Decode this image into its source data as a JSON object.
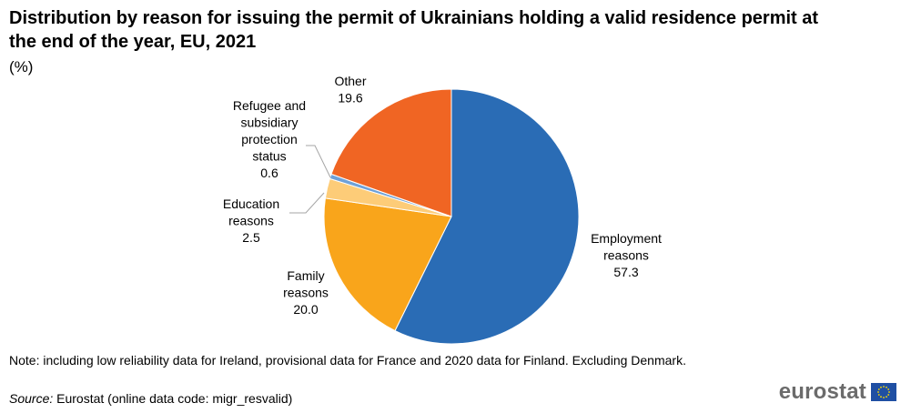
{
  "header": {
    "title": "Distribution by reason for issuing the permit of Ukrainians holding a valid residence permit at the end of the year, EU, 2021",
    "unit": "(%)"
  },
  "chart_data": {
    "type": "pie",
    "start_angle_deg": 0,
    "direction": "clockwise",
    "slices": [
      {
        "label_lines": [
          "Employment",
          "reasons"
        ],
        "value": 57.3,
        "value_text": "57.3",
        "color": "#2a6cb5"
      },
      {
        "label_lines": [
          "Family",
          "reasons"
        ],
        "value": 20.0,
        "value_text": "20.0",
        "color": "#f9a51b"
      },
      {
        "label_lines": [
          "Education",
          "reasons"
        ],
        "value": 2.5,
        "value_text": "2.5",
        "color": "#fdcc78"
      },
      {
        "label_lines": [
          "Refugee and",
          "subsidiary",
          "protection",
          "status"
        ],
        "value": 0.6,
        "value_text": "0.6",
        "color": "#6ea1d8"
      },
      {
        "label_lines": [
          "Other"
        ],
        "value": 19.6,
        "value_text": "19.6",
        "color": "#f06523"
      }
    ]
  },
  "footer": {
    "note": "Note: including low reliability data for Ireland, provisional data for France and 2020 data for Finland. Excluding Denmark.",
    "source_label": "Source:",
    "source_text": " Eurostat (online data code: migr_resvalid)",
    "logo_text": "eurostat"
  }
}
